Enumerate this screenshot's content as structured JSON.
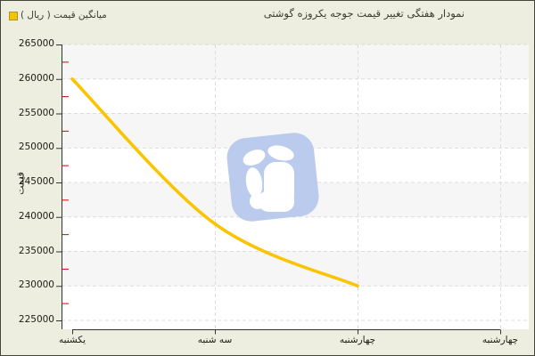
{
  "title": "نمودار هفتگی تغییر قیمت جوجه یکروزه گوشتی",
  "legend": {
    "label": "میانگین قیمت ( ریال )"
  },
  "colors": {
    "background": "#eeeee0",
    "plot_background": "#ffffff",
    "band": "#f6f6f6",
    "grid": "#dcdcdc",
    "axis": "#333333",
    "minor_tick": "#d40000",
    "text": "#1c1c16",
    "line": "#fbc400",
    "legend_marker": "#f2c500",
    "watermark": "#bacbed"
  },
  "chart_data": {
    "type": "line",
    "title": "نمودار هفتگی تغییر قیمت جوجه یکروزه گوشتی",
    "ylabel": "قیمت",
    "categories": [
      "یکشنبه",
      "سه شنبه",
      "چهارشنبه",
      "چهارشنبه"
    ],
    "series": [
      {
        "name": "میانگین قیمت ( ریال )",
        "color": "#fbc400",
        "values": [
          260000,
          239000,
          230000,
          null
        ]
      }
    ],
    "ylim": [
      225000,
      265000
    ],
    "ytick_step": 5000,
    "minor_tick_step": 2500,
    "ytick_labels": [
      "225000",
      "230000",
      "235000",
      "240000",
      "245000",
      "250000",
      "255000",
      "260000",
      "265000"
    ],
    "grid": true,
    "smooth": true,
    "legend_position": "top-left"
  }
}
